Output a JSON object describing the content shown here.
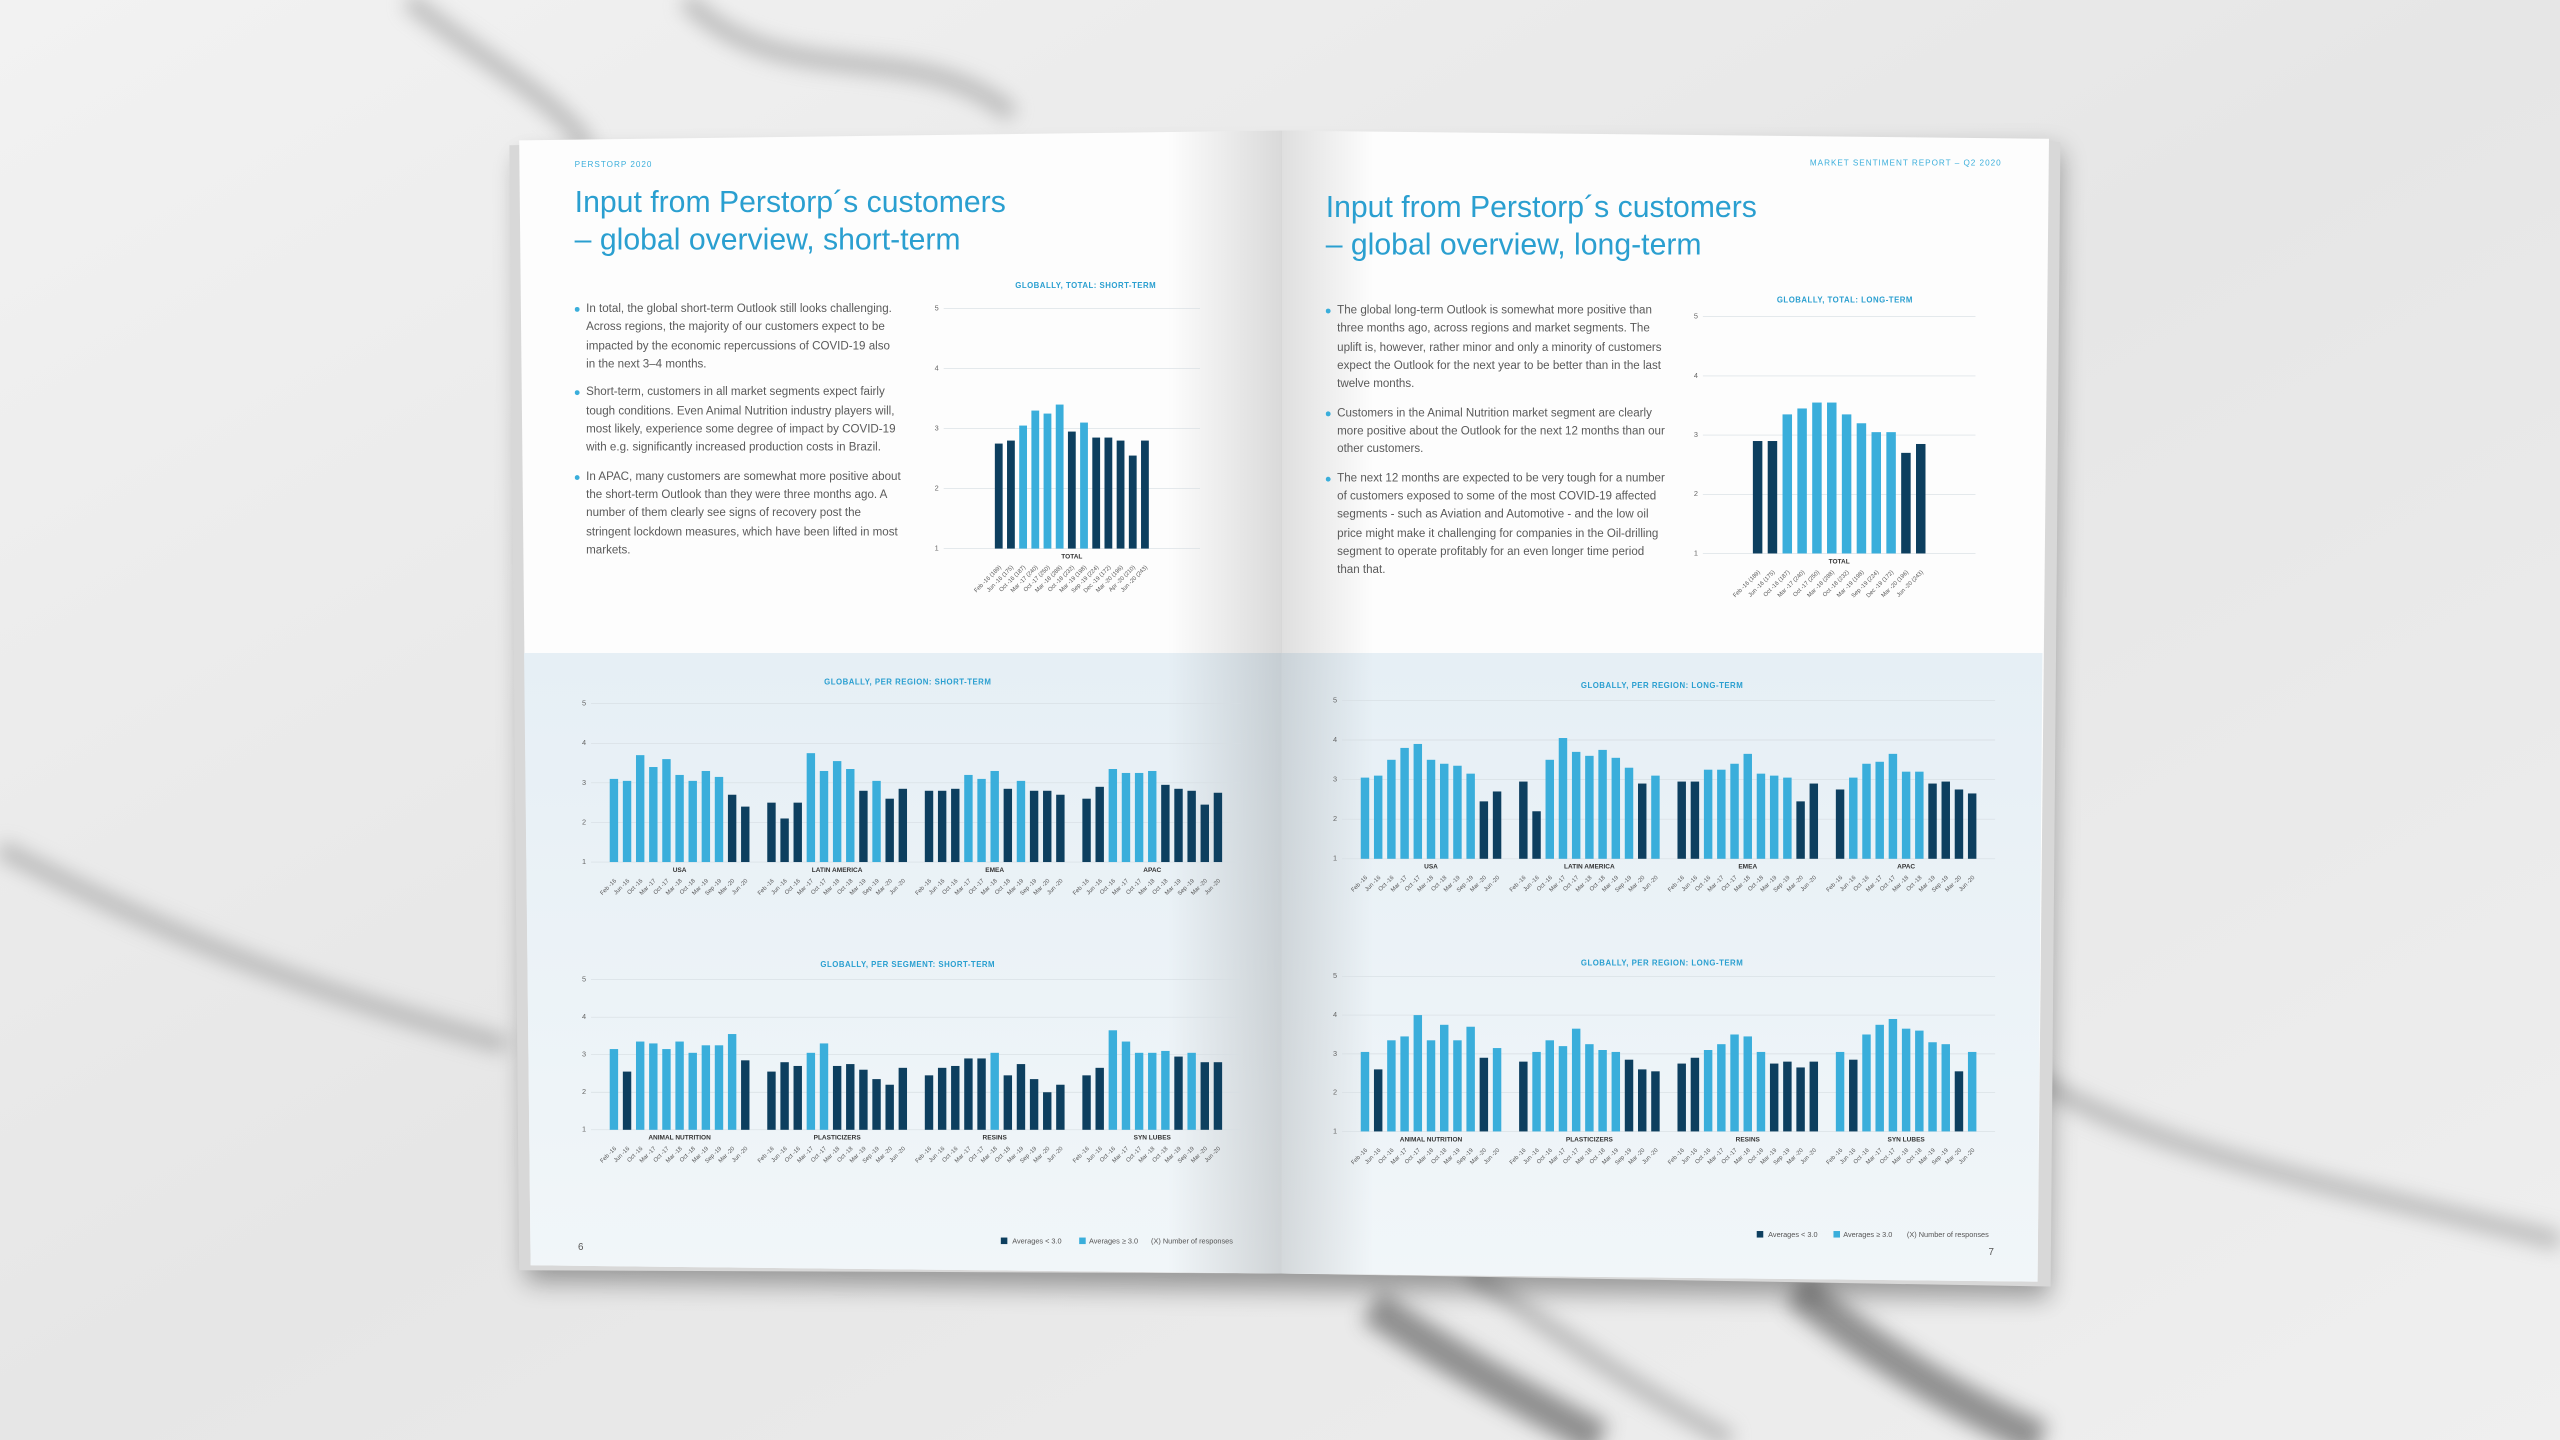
{
  "left_page": {
    "header": "PERSTORP 2020",
    "title": [
      "Input from Perstorp´s customers",
      "– global overview, short-term"
    ],
    "bullets": [
      "In total, the global short-term Outlook still looks challenging. Across regions, the majority of our customers expect to be impacted by the economic repercussions of COVID-19 also in the next 3–4 months.",
      "Short-term, customers in all market segments expect fairly tough conditions. Even Animal Nutrition industry players will, most likely, experience some degree of impact by COVID-19 with e.g. significantly increased production costs in Brazil.",
      "In APAC, many customers are somewhat more positive about the short-term Outlook than they were three months ago. A number of them clearly see signs of recovery post the stringent lockdown measures, which have been lifted in most markets."
    ],
    "page_number": "6",
    "legend": [
      "Averages < 3.0",
      "Averages ≥ 3.0",
      "(X)  Number of responses"
    ]
  },
  "right_page": {
    "header": "MARKET SENTIMENT REPORT – Q2 2020",
    "title": [
      "Input from Perstorp´s customers",
      "– global overview, long-term"
    ],
    "bullets": [
      "The global long-term Outlook is somewhat more positive than three months ago, across regions and market segments. The uplift is, however, rather minor and only a minority of customers expect the Outlook for the next year to be better than in the last twelve months.",
      "Customers in the Animal Nutrition market segment are clearly more positive about the Outlook for the next 12 months than our other customers.",
      "The next 12 months are expected to be very tough for a number of customers exposed to some of the most COVID-19 affected segments - such as Aviation and Automotive - and the low oil price might make it challenging for companies in the Oil-drilling segment to operate profitably for an even longer time period than that."
    ],
    "page_number": "7",
    "legend": [
      "Averages < 3.0",
      "Averages ≥ 3.0",
      "(X)  Number of responses"
    ]
  },
  "chart_data": [
    {
      "type": "bar",
      "title": "GLOBALLY, TOTAL: SHORT-TERM",
      "ylim": [
        1,
        5
      ],
      "yticks": [
        1,
        2,
        3,
        4,
        5
      ],
      "grid": true,
      "threshold": 3,
      "colors": [
        "#0d3f5f",
        "#3aaedb"
      ],
      "categories": [
        "Feb -16 (189)",
        "Jun -16 (175)",
        "Oct -16 (187)",
        "Mar -17 (240)",
        "Oct -17 (250)",
        "Mar -18 (288)",
        "Oct -18 (232)",
        "Mar -19 (198)",
        "Sep -19 (224)",
        "Dec -19 (172)",
        "Mar -20 (196)",
        "Apr -20 (210)",
        "Jun -20 (243)"
      ],
      "groups": [
        {
          "name": "TOTAL",
          "values": [
            2.75,
            2.8,
            3.05,
            3.3,
            3.25,
            3.4,
            2.95,
            3.1,
            2.85,
            2.85,
            2.8,
            2.55,
            2.8
          ]
        }
      ]
    },
    {
      "type": "bar",
      "title": "GLOBALLY, TOTAL: LONG-TERM",
      "ylim": [
        1,
        5
      ],
      "yticks": [
        1,
        2,
        3,
        4,
        5
      ],
      "grid": true,
      "threshold": 3,
      "colors": [
        "#0d3f5f",
        "#3aaedb"
      ],
      "categories": [
        "Feb -16 (189)",
        "Jun -16 (175)",
        "Oct -16 (187)",
        "Mar -17 (240)",
        "Oct -17 (250)",
        "Mar -18 (288)",
        "Oct -18 (232)",
        "Mar -19 (198)",
        "Sep -19 (224)",
        "Dec -19 (172)",
        "Mar -20 (196)",
        "Jun -20 (243)"
      ],
      "groups": [
        {
          "name": "TOTAL",
          "values": [
            2.9,
            2.9,
            3.35,
            3.45,
            3.55,
            3.55,
            3.35,
            3.2,
            3.05,
            3.05,
            2.7,
            2.85
          ]
        }
      ]
    },
    {
      "type": "bar",
      "title": "GLOBALLY, PER REGION: SHORT-TERM",
      "ylim": [
        1,
        5
      ],
      "yticks": [
        1,
        2,
        3,
        4,
        5
      ],
      "grid": true,
      "threshold": 3,
      "colors": [
        "#0d3f5f",
        "#3aaedb"
      ],
      "categories": [
        "Feb -16",
        "Jun -16",
        "Oct -16",
        "Mar -17",
        "Oct -17",
        "Mar -18",
        "Oct -18",
        "Mar -19",
        "Sep -19",
        "Mar -20",
        "Jun -20"
      ],
      "groups": [
        {
          "name": "USA",
          "values": [
            3.1,
            3.05,
            3.7,
            3.4,
            3.6,
            3.2,
            3.05,
            3.3,
            3.15,
            2.7,
            2.4
          ]
        },
        {
          "name": "LATIN AMERICA",
          "values": [
            2.5,
            2.1,
            2.5,
            3.75,
            3.3,
            3.55,
            3.35,
            2.8,
            3.05,
            2.6,
            2.85
          ]
        },
        {
          "name": "EMEA",
          "values": [
            2.8,
            2.8,
            2.85,
            3.2,
            3.1,
            3.3,
            2.85,
            3.05,
            2.8,
            2.8,
            2.7
          ]
        },
        {
          "name": "APAC",
          "values": [
            2.6,
            2.9,
            3.35,
            3.25,
            3.25,
            3.3,
            2.95,
            2.85,
            2.8,
            2.45,
            2.75
          ]
        }
      ]
    },
    {
      "type": "bar",
      "title": "GLOBALLY, PER SEGMENT: SHORT-TERM",
      "ylim": [
        1,
        5
      ],
      "yticks": [
        1,
        2,
        3,
        4,
        5
      ],
      "grid": true,
      "threshold": 3,
      "colors": [
        "#0d3f5f",
        "#3aaedb"
      ],
      "categories": [
        "Feb -16",
        "Jun -16",
        "Oct -16",
        "Mar -17",
        "Oct -17",
        "Mar -18",
        "Oct -18",
        "Mar -19",
        "Sep -19",
        "Mar -20",
        "Jun -20"
      ],
      "groups": [
        {
          "name": "ANIMAL NUTRITION",
          "values": [
            3.15,
            2.55,
            3.35,
            3.3,
            3.15,
            3.35,
            3.05,
            3.25,
            3.25,
            3.55,
            2.85
          ]
        },
        {
          "name": "PLASTICIZERS",
          "values": [
            2.55,
            2.8,
            2.7,
            3.05,
            3.3,
            2.7,
            2.75,
            2.6,
            2.35,
            2.2,
            2.65
          ]
        },
        {
          "name": "RESINS",
          "values": [
            2.45,
            2.65,
            2.7,
            2.9,
            2.9,
            3.05,
            2.45,
            2.75,
            2.35,
            2.0,
            2.2
          ]
        },
        {
          "name": "SYN LUBES",
          "values": [
            2.45,
            2.65,
            3.65,
            3.35,
            3.05,
            3.05,
            3.1,
            2.95,
            3.05,
            2.8,
            2.8
          ]
        }
      ]
    },
    {
      "type": "bar",
      "title": "GLOBALLY, PER REGION: LONG-TERM",
      "ylim": [
        1,
        5
      ],
      "yticks": [
        1,
        2,
        3,
        4,
        5
      ],
      "grid": true,
      "threshold": 3,
      "colors": [
        "#0d3f5f",
        "#3aaedb"
      ],
      "categories": [
        "Feb -16",
        "Jun -16",
        "Oct -16",
        "Mar -17",
        "Oct -17",
        "Mar -18",
        "Oct -18",
        "Mar -19",
        "Sep -19",
        "Mar -20",
        "Jun -20"
      ],
      "groups": [
        {
          "name": "USA",
          "values": [
            3.05,
            3.1,
            3.5,
            3.8,
            3.9,
            3.5,
            3.4,
            3.35,
            3.15,
            2.45,
            2.7
          ]
        },
        {
          "name": "LATIN AMERICA",
          "values": [
            2.95,
            2.2,
            3.5,
            4.05,
            3.7,
            3.6,
            3.75,
            3.55,
            3.3,
            2.9,
            3.1
          ]
        },
        {
          "name": "EMEA",
          "values": [
            2.95,
            2.95,
            3.25,
            3.25,
            3.4,
            3.65,
            3.15,
            3.1,
            3.05,
            2.45,
            2.9
          ]
        },
        {
          "name": "APAC",
          "values": [
            2.75,
            3.05,
            3.4,
            3.45,
            3.65,
            3.2,
            3.2,
            2.9,
            2.95,
            2.75,
            2.65
          ]
        }
      ]
    },
    {
      "type": "bar",
      "title": "GLOBALLY, PER REGION: LONG-TERM",
      "ylim": [
        1,
        5
      ],
      "yticks": [
        1,
        2,
        3,
        4,
        5
      ],
      "grid": true,
      "threshold": 3,
      "colors": [
        "#0d3f5f",
        "#3aaedb"
      ],
      "categories": [
        "Feb -16",
        "Jun -16",
        "Oct -16",
        "Mar -17",
        "Oct -17",
        "Mar -18",
        "Oct -18",
        "Mar -19",
        "Sep -19",
        "Mar -20",
        "Jun -20"
      ],
      "groups": [
        {
          "name": "ANIMAL NUTRITION",
          "values": [
            3.05,
            2.6,
            3.35,
            3.45,
            4.0,
            3.35,
            3.75,
            3.35,
            3.7,
            2.9,
            3.15
          ]
        },
        {
          "name": "PLASTICIZERS",
          "values": [
            2.8,
            3.05,
            3.35,
            3.2,
            3.65,
            3.25,
            3.1,
            3.05,
            2.85,
            2.6,
            2.55
          ]
        },
        {
          "name": "RESINS",
          "values": [
            2.75,
            2.9,
            3.1,
            3.25,
            3.5,
            3.45,
            3.05,
            2.75,
            2.8,
            2.65,
            2.8
          ]
        },
        {
          "name": "SYN LUBES",
          "values": [
            3.05,
            2.85,
            3.5,
            3.75,
            3.9,
            3.65,
            3.6,
            3.3,
            3.25,
            2.55,
            3.05
          ]
        }
      ]
    }
  ]
}
